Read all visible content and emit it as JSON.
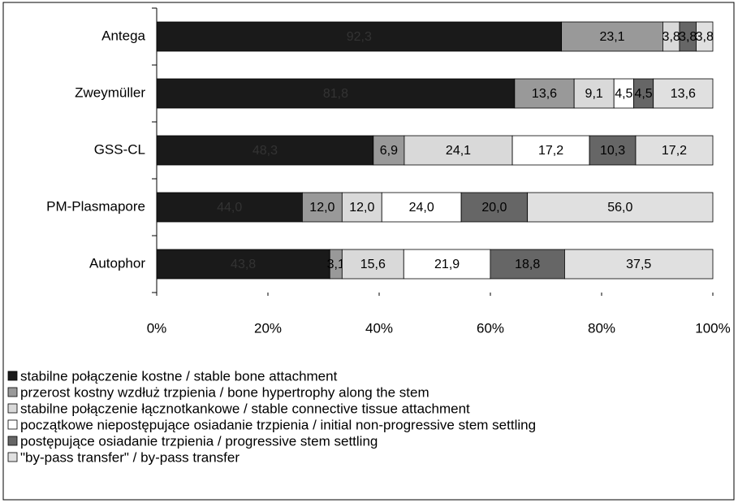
{
  "chart_data": {
    "type": "bar",
    "orientation": "horizontal",
    "stacking": "percent",
    "categories": [
      "Antega",
      "Zweymüller",
      "GSS-CL",
      "PM-Plasmapore",
      "Autophor"
    ],
    "series": [
      {
        "name": "stabilne połączenie kostne / stable bone attachment",
        "color": "#1a1a1a",
        "values": [
          92.3,
          81.8,
          48.3,
          44.0,
          43.8
        ],
        "value_labels": [
          "92,3",
          "81,8",
          "48,3",
          "44,0",
          "43,8"
        ]
      },
      {
        "name": "przerost kostny wzdłuż trzpienia / bone hypertrophy along the stem",
        "color": "#999999",
        "values": [
          23.1,
          13.6,
          6.9,
          12.0,
          3.1
        ],
        "value_labels": [
          "23,1",
          "13,6",
          "6,9",
          "12,0",
          "3,1"
        ]
      },
      {
        "name": "stabilne połączenie łącznotkankowe / stable connective tissue attachment",
        "color": "#d9d9d9",
        "values": [
          3.8,
          9.1,
          24.1,
          12.0,
          15.6
        ],
        "value_labels": [
          "3,8",
          "9,1",
          "24,1",
          "12,0",
          "15,6"
        ]
      },
      {
        "name": "początkowe niepostępujące osiadanie trzpienia / initial non-progressive stem settling",
        "color": "#ffffff",
        "values": [
          null,
          4.5,
          17.2,
          24.0,
          21.9
        ],
        "value_labels": [
          null,
          "4,5",
          "17,2",
          "24,0",
          "21,9"
        ]
      },
      {
        "name": "postępujące osiadanie trzpienia / progressive stem settling",
        "color": "#666666",
        "values": [
          3.8,
          4.5,
          10.3,
          20.0,
          18.8
        ],
        "value_labels": [
          "3,8",
          "4,5",
          "10,3",
          "20,0",
          "18,8"
        ]
      },
      {
        "name": "\"by-pass transfer\" / by-pass transfer",
        "color": "#e0e0e0",
        "values": [
          3.8,
          13.6,
          17.2,
          56.0,
          37.5
        ],
        "value_labels": [
          "3,8",
          "13,6",
          "17,2",
          "56,0",
          "37,5"
        ]
      }
    ],
    "xlim": [
      0,
      100
    ],
    "xticks": [
      {
        "value": 0,
        "label": "0%"
      },
      {
        "value": 20,
        "label": "20%"
      },
      {
        "value": 40,
        "label": "40%"
      },
      {
        "value": 60,
        "label": "60%"
      },
      {
        "value": 80,
        "label": "80%"
      },
      {
        "value": 100,
        "label": "100%"
      }
    ],
    "legend": "bottom-left"
  }
}
